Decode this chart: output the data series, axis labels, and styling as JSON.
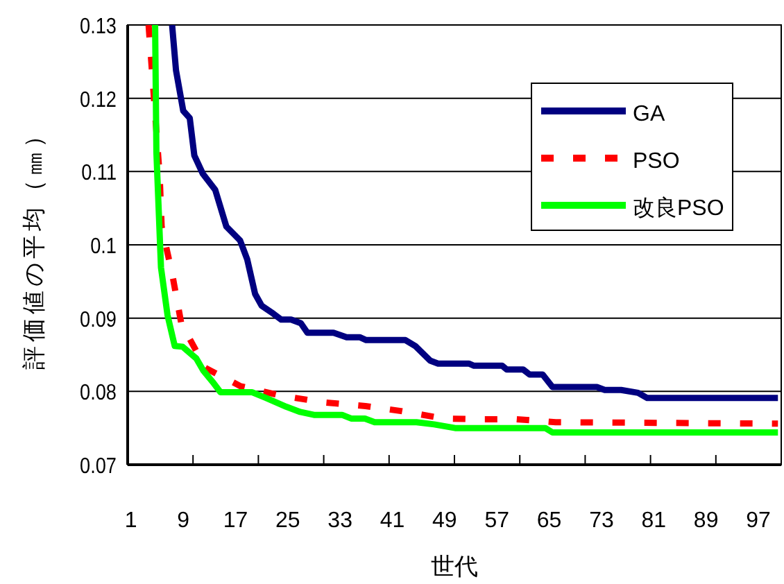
{
  "chart_data": {
    "type": "line",
    "xlabel": "世代",
    "ylabel": "評価値の平均（㎜）",
    "xlim": [
      0.5,
      100.5
    ],
    "xticks": [
      1,
      9,
      17,
      25,
      33,
      41,
      49,
      57,
      65,
      73,
      81,
      89,
      97,
      {
        "value": 10.5,
        "label": null
      },
      {
        "value": 20.5,
        "label": null
      },
      {
        "value": 30.5,
        "label": null
      },
      {
        "value": 40.5,
        "label": null
      },
      {
        "value": 50.5,
        "label": null
      },
      {
        "value": 60.5,
        "label": null
      },
      {
        "value": 70.5,
        "label": null
      },
      {
        "value": 80.5,
        "label": null
      },
      {
        "value": 90.5,
        "label": null
      }
    ],
    "ylim": [
      0.07,
      0.13
    ],
    "yticks": [
      0.07,
      0.08,
      0.09,
      0.1,
      0.11,
      0.12,
      0.13
    ],
    "grid": "y",
    "legend": "top right",
    "series": [
      {
        "name": "GA",
        "color": "#000080",
        "line_style": "solid",
        "x": [
          7.3,
          7.9,
          9,
          10,
          10.7,
          12,
          13.9,
          15.6,
          17.7,
          18.8,
          20,
          21,
          22.8,
          24,
          25.5,
          27,
          28,
          32,
          34,
          36,
          37,
          43,
          44.5,
          46.8,
          48,
          52.7,
          53.5,
          57.8,
          58.5,
          61,
          62,
          64,
          65.5,
          72.3,
          73.5,
          76,
          78.6,
          80,
          100
        ],
        "values": [
          0.13,
          0.1238,
          0.1183,
          0.1173,
          0.1122,
          0.1097,
          0.1075,
          0.1025,
          0.1006,
          0.098,
          0.0933,
          0.0917,
          0.0906,
          0.0898,
          0.0898,
          0.0893,
          0.088,
          0.088,
          0.0874,
          0.0874,
          0.087,
          0.087,
          0.0862,
          0.0842,
          0.0838,
          0.0838,
          0.0835,
          0.0835,
          0.083,
          0.083,
          0.0823,
          0.0823,
          0.0806,
          0.0806,
          0.0802,
          0.0802,
          0.0798,
          0.0791,
          0.0791
        ]
      },
      {
        "name": "PSO",
        "color": "#ff0000",
        "line_style": "dashed",
        "x": [
          3.7,
          5.4,
          5.7,
          7.3,
          8.7,
          12.4,
          17.8,
          24.1,
          30.5,
          36.9,
          42.5,
          48.9,
          54.9,
          60,
          66,
          100
        ],
        "values": [
          0.13,
          0.1094,
          0.1025,
          0.0961,
          0.0893,
          0.0832,
          0.0807,
          0.0794,
          0.0785,
          0.078,
          0.0773,
          0.0763,
          0.0762,
          0.0762,
          0.0758,
          0.0756
        ]
      },
      {
        "name": "改良PSO",
        "color": "#00ff00",
        "line_style": "solid",
        "x": [
          4.7,
          4.9,
          5.6,
          6.6,
          7.7,
          8.9,
          11,
          12.1,
          13.5,
          14.7,
          19.5,
          21.7,
          24.8,
          26.9,
          29,
          33.3,
          34.7,
          36.8,
          38.3,
          44.7,
          47.4,
          50.6,
          64.4,
          65.5,
          100
        ],
        "values": [
          0.13,
          0.1126,
          0.0969,
          0.0904,
          0.0862,
          0.0861,
          0.0845,
          0.0828,
          0.0813,
          0.0799,
          0.0799,
          0.0791,
          0.0779,
          0.0772,
          0.0768,
          0.0768,
          0.0763,
          0.0763,
          0.0758,
          0.0758,
          0.0755,
          0.075,
          0.075,
          0.0744,
          0.0744
        ]
      }
    ]
  }
}
